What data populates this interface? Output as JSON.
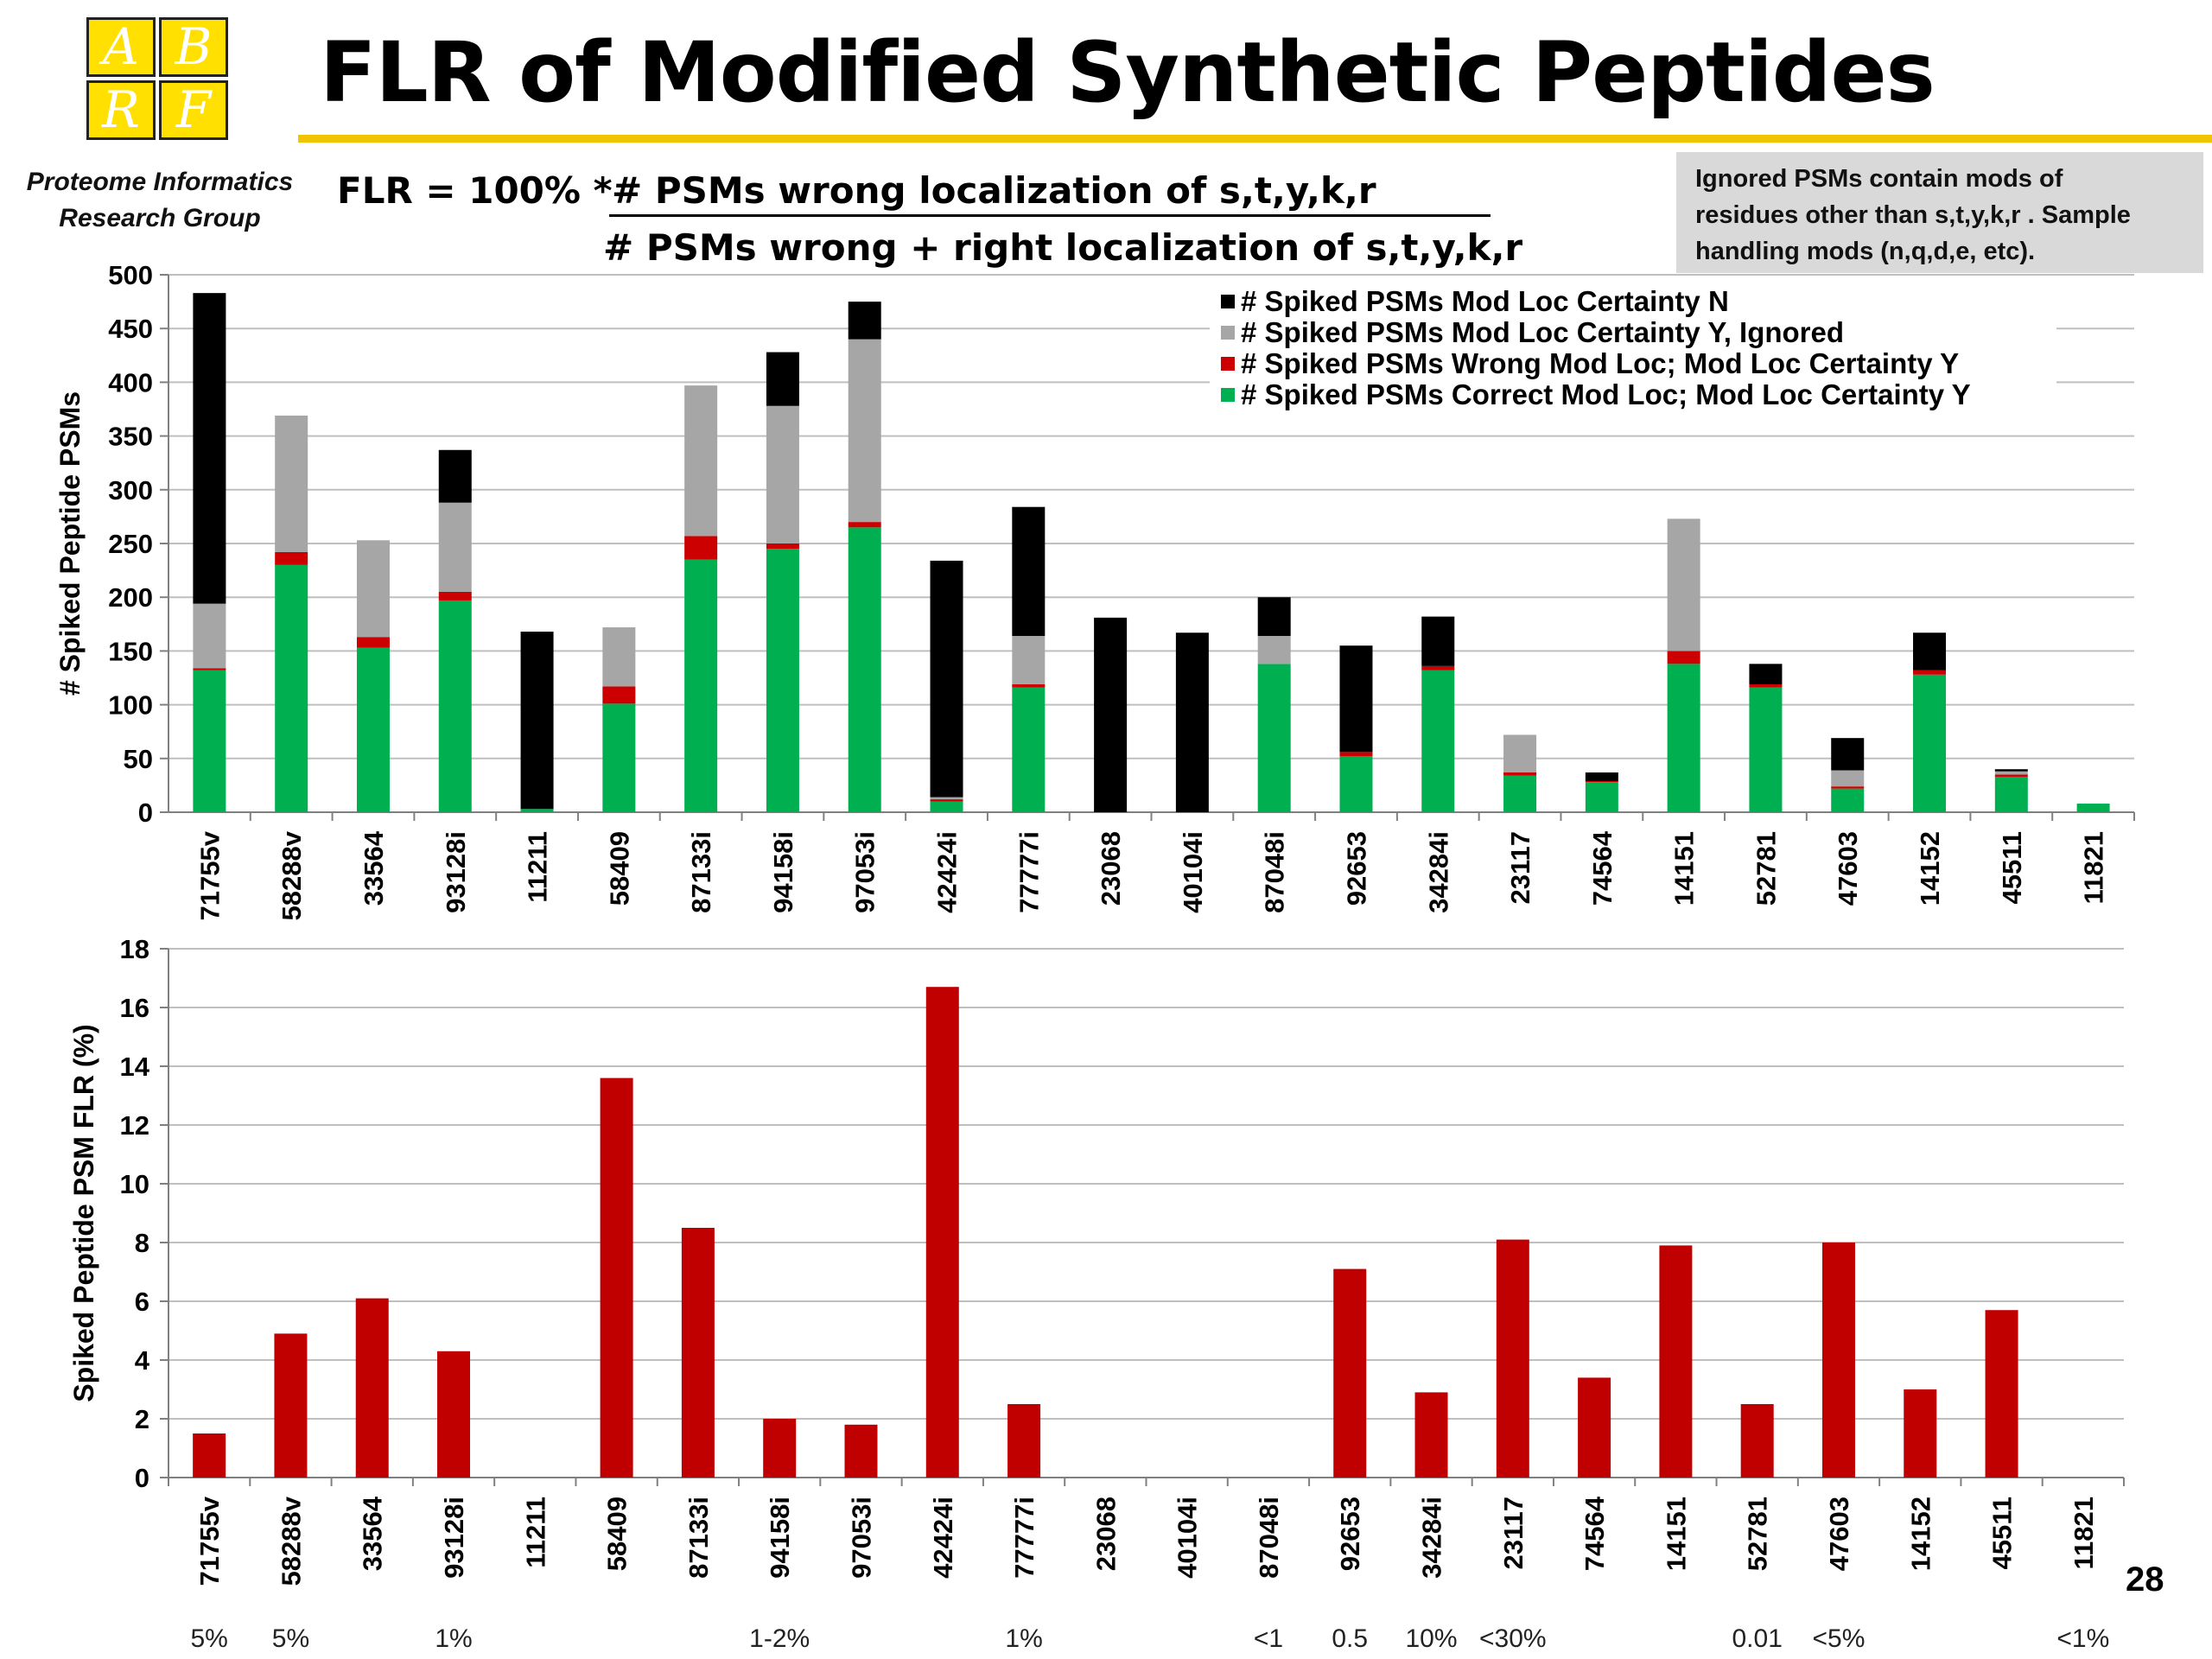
{
  "header": {
    "logo_letters": [
      "A",
      "B",
      "R",
      "F"
    ],
    "title": "FLR of Modified Synthetic Peptides",
    "group_line1": "Proteome Informatics",
    "group_line2": "Research Group",
    "formula_lhs": "FLR = 100% *",
    "formula_numerator": "# PSMs wrong localization of  s,t,y,k,r",
    "formula_denominator": "# PSMs wrong + right localization of  s,t,y,k,r",
    "note_line1": "Ignored PSMs contain mods of",
    "note_line2": "residues other than s,t,y,k,r .  Sample",
    "note_line3": "handling mods (n,q,d,e, etc).",
    "page_number": "28"
  },
  "colors": {
    "black": "#000000",
    "gray": "#a6a6a6",
    "red": "#cc0000",
    "green": "#00b050",
    "flr_bar": "#c00000",
    "logo_yellow": "#ffe000",
    "title_rule": "#f0c400"
  },
  "chart_data": [
    {
      "type": "bar",
      "stacked": true,
      "categories": [
        "71755v",
        "58288v",
        "33564",
        "93128i",
        "11211",
        "58409",
        "87133i",
        "94158i",
        "97053i",
        "42424i",
        "77777i",
        "23068",
        "40104i",
        "87048i",
        "92653",
        "34284i",
        "23117",
        "74564",
        "14151",
        "52781",
        "47603",
        "14152",
        "45511",
        "11821"
      ],
      "ylabel": "#  Spiked  Peptide PSMs",
      "ylim": [
        0,
        500
      ],
      "yticks": [
        0,
        50,
        100,
        150,
        200,
        250,
        300,
        350,
        400,
        450,
        500
      ],
      "grid": true,
      "legend_position": "top-right",
      "series": [
        {
          "name": "# Spiked PSMs Correct Mod Loc; Mod Loc Certainty Y",
          "color": "#00b050",
          "values": [
            132,
            230,
            153,
            197,
            3,
            101,
            235,
            245,
            265,
            10,
            116,
            0,
            0,
            138,
            52,
            132,
            34,
            28,
            138,
            116,
            22,
            128,
            33,
            8
          ]
        },
        {
          "name": "# Spiked PSMs Wrong Mod Loc; Mod Loc Certainty Y",
          "color": "#cc0000",
          "values": [
            2,
            12,
            10,
            8,
            0,
            16,
            22,
            5,
            5,
            2,
            3,
            0,
            0,
            0,
            4,
            4,
            3,
            1,
            12,
            3,
            2,
            4,
            2,
            0
          ]
        },
        {
          "name": "# Spiked PSMs Mod Loc Certainty Y, Ignored",
          "color": "#a6a6a6",
          "values": [
            60,
            127,
            90,
            83,
            0,
            55,
            140,
            128,
            170,
            2,
            45,
            0,
            0,
            26,
            0,
            0,
            35,
            0,
            123,
            0,
            15,
            0,
            3,
            0
          ]
        },
        {
          "name": "# Spiked PSMs Mod Loc Certainty N",
          "color": "#000000",
          "values": [
            289,
            0,
            0,
            49,
            165,
            0,
            0,
            50,
            35,
            220,
            120,
            181,
            167,
            36,
            99,
            46,
            0,
            8,
            0,
            19,
            30,
            35,
            2,
            0
          ]
        }
      ],
      "legend_order": [
        3,
        2,
        1,
        0
      ]
    },
    {
      "type": "bar",
      "categories": [
        "71755v",
        "58288v",
        "33564",
        "93128i",
        "11211",
        "58409",
        "87133i",
        "94158i",
        "97053i",
        "42424i",
        "77777i",
        "23068",
        "40104i",
        "87048i",
        "92653",
        "34284i",
        "23117",
        "74564",
        "14151",
        "52781",
        "47603",
        "14152",
        "45511",
        "11821"
      ],
      "values": [
        1.5,
        4.9,
        6.1,
        4.3,
        0,
        13.6,
        8.5,
        2.0,
        1.8,
        16.7,
        2.5,
        0,
        0,
        0,
        7.1,
        2.9,
        8.1,
        3.4,
        7.9,
        2.5,
        8.0,
        3.0,
        5.7,
        0
      ],
      "ylabel": "Spiked Peptide PSM FLR (%)",
      "ylim": [
        0,
        18
      ],
      "yticks": [
        0,
        2,
        4,
        6,
        8,
        10,
        12,
        14,
        16,
        18
      ],
      "grid": true,
      "color": "#c00000",
      "annotations": [
        {
          "category": "71755v",
          "text": "5%"
        },
        {
          "category": "58288v",
          "text": "5%"
        },
        {
          "category": "93128i",
          "text": "1%"
        },
        {
          "category": "94158i",
          "text": "1-2%"
        },
        {
          "category": "77777i",
          "text": "1%"
        },
        {
          "category": "87048i",
          "text": "<1"
        },
        {
          "category": "92653",
          "text": "0.5"
        },
        {
          "category": "34284i",
          "text": "10%"
        },
        {
          "category": "23117",
          "text": "<30%"
        },
        {
          "category": "52781",
          "text": "0.01"
        },
        {
          "category": "47603",
          "text": "<5%"
        },
        {
          "category": "11821",
          "text": "<1%"
        }
      ]
    }
  ]
}
